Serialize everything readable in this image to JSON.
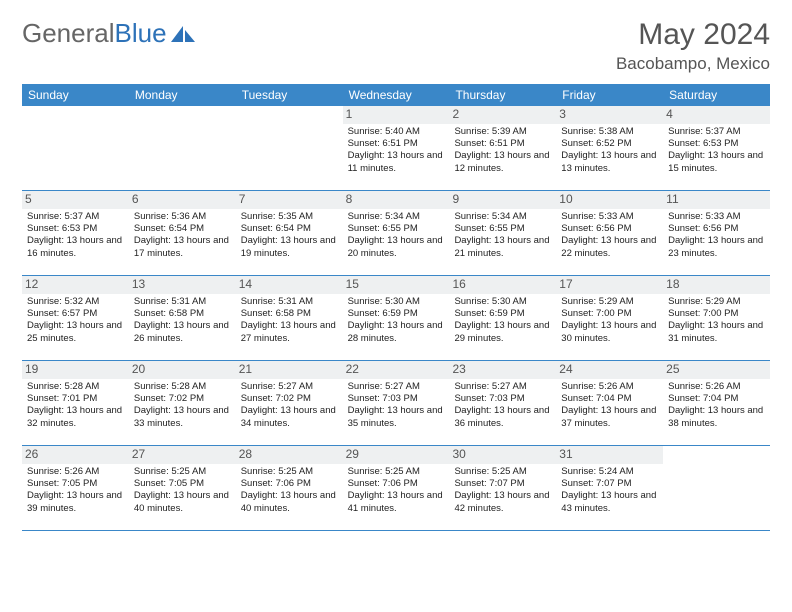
{
  "brand": {
    "name1": "General",
    "name2": "Blue"
  },
  "title": "May 2024",
  "location": "Bacobampo, Mexico",
  "colors": {
    "header_bg": "#3a87c8",
    "header_text": "#ffffff",
    "daynum_bg": "#eef0f1",
    "border": "#3a87c8",
    "text": "#222222",
    "title_color": "#555555"
  },
  "dayNames": [
    "Sunday",
    "Monday",
    "Tuesday",
    "Wednesday",
    "Thursday",
    "Friday",
    "Saturday"
  ],
  "weeks": [
    [
      null,
      null,
      null,
      {
        "d": "1",
        "sr": "5:40 AM",
        "ss": "6:51 PM",
        "dl": "13 hours and 11 minutes."
      },
      {
        "d": "2",
        "sr": "5:39 AM",
        "ss": "6:51 PM",
        "dl": "13 hours and 12 minutes."
      },
      {
        "d": "3",
        "sr": "5:38 AM",
        "ss": "6:52 PM",
        "dl": "13 hours and 13 minutes."
      },
      {
        "d": "4",
        "sr": "5:37 AM",
        "ss": "6:53 PM",
        "dl": "13 hours and 15 minutes."
      }
    ],
    [
      {
        "d": "5",
        "sr": "5:37 AM",
        "ss": "6:53 PM",
        "dl": "13 hours and 16 minutes."
      },
      {
        "d": "6",
        "sr": "5:36 AM",
        "ss": "6:54 PM",
        "dl": "13 hours and 17 minutes."
      },
      {
        "d": "7",
        "sr": "5:35 AM",
        "ss": "6:54 PM",
        "dl": "13 hours and 19 minutes."
      },
      {
        "d": "8",
        "sr": "5:34 AM",
        "ss": "6:55 PM",
        "dl": "13 hours and 20 minutes."
      },
      {
        "d": "9",
        "sr": "5:34 AM",
        "ss": "6:55 PM",
        "dl": "13 hours and 21 minutes."
      },
      {
        "d": "10",
        "sr": "5:33 AM",
        "ss": "6:56 PM",
        "dl": "13 hours and 22 minutes."
      },
      {
        "d": "11",
        "sr": "5:33 AM",
        "ss": "6:56 PM",
        "dl": "13 hours and 23 minutes."
      }
    ],
    [
      {
        "d": "12",
        "sr": "5:32 AM",
        "ss": "6:57 PM",
        "dl": "13 hours and 25 minutes."
      },
      {
        "d": "13",
        "sr": "5:31 AM",
        "ss": "6:58 PM",
        "dl": "13 hours and 26 minutes."
      },
      {
        "d": "14",
        "sr": "5:31 AM",
        "ss": "6:58 PM",
        "dl": "13 hours and 27 minutes."
      },
      {
        "d": "15",
        "sr": "5:30 AM",
        "ss": "6:59 PM",
        "dl": "13 hours and 28 minutes."
      },
      {
        "d": "16",
        "sr": "5:30 AM",
        "ss": "6:59 PM",
        "dl": "13 hours and 29 minutes."
      },
      {
        "d": "17",
        "sr": "5:29 AM",
        "ss": "7:00 PM",
        "dl": "13 hours and 30 minutes."
      },
      {
        "d": "18",
        "sr": "5:29 AM",
        "ss": "7:00 PM",
        "dl": "13 hours and 31 minutes."
      }
    ],
    [
      {
        "d": "19",
        "sr": "5:28 AM",
        "ss": "7:01 PM",
        "dl": "13 hours and 32 minutes."
      },
      {
        "d": "20",
        "sr": "5:28 AM",
        "ss": "7:02 PM",
        "dl": "13 hours and 33 minutes."
      },
      {
        "d": "21",
        "sr": "5:27 AM",
        "ss": "7:02 PM",
        "dl": "13 hours and 34 minutes."
      },
      {
        "d": "22",
        "sr": "5:27 AM",
        "ss": "7:03 PM",
        "dl": "13 hours and 35 minutes."
      },
      {
        "d": "23",
        "sr": "5:27 AM",
        "ss": "7:03 PM",
        "dl": "13 hours and 36 minutes."
      },
      {
        "d": "24",
        "sr": "5:26 AM",
        "ss": "7:04 PM",
        "dl": "13 hours and 37 minutes."
      },
      {
        "d": "25",
        "sr": "5:26 AM",
        "ss": "7:04 PM",
        "dl": "13 hours and 38 minutes."
      }
    ],
    [
      {
        "d": "26",
        "sr": "5:26 AM",
        "ss": "7:05 PM",
        "dl": "13 hours and 39 minutes."
      },
      {
        "d": "27",
        "sr": "5:25 AM",
        "ss": "7:05 PM",
        "dl": "13 hours and 40 minutes."
      },
      {
        "d": "28",
        "sr": "5:25 AM",
        "ss": "7:06 PM",
        "dl": "13 hours and 40 minutes."
      },
      {
        "d": "29",
        "sr": "5:25 AM",
        "ss": "7:06 PM",
        "dl": "13 hours and 41 minutes."
      },
      {
        "d": "30",
        "sr": "5:25 AM",
        "ss": "7:07 PM",
        "dl": "13 hours and 42 minutes."
      },
      {
        "d": "31",
        "sr": "5:24 AM",
        "ss": "7:07 PM",
        "dl": "13 hours and 43 minutes."
      },
      null
    ]
  ],
  "labels": {
    "sunrise": "Sunrise:",
    "sunset": "Sunset:",
    "daylight": "Daylight:"
  }
}
